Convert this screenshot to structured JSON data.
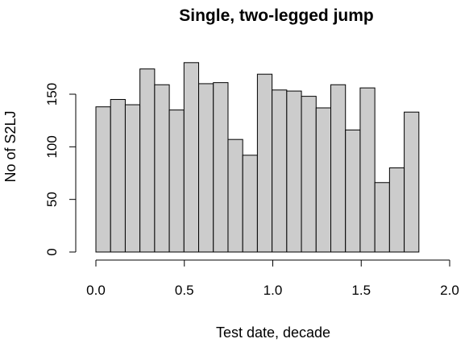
{
  "chart_data": {
    "type": "bar",
    "title": "Single, two-legged jump",
    "xlabel": "Test date, decade",
    "ylabel": "No of S2LJ",
    "bin_width": 0.083,
    "x_bins_start": [
      0.0,
      0.083,
      0.166,
      0.249,
      0.332,
      0.415,
      0.498,
      0.581,
      0.664,
      0.747,
      0.83,
      0.913,
      0.996,
      1.079,
      1.162,
      1.245,
      1.328,
      1.411,
      1.494,
      1.577,
      1.66,
      1.743
    ],
    "values": [
      138,
      145,
      140,
      174,
      159,
      135,
      180,
      160,
      161,
      107,
      92,
      169,
      154,
      153,
      148,
      137,
      159,
      116,
      156,
      66,
      80,
      133
    ],
    "xlim": [
      0,
      2
    ],
    "ylim": [
      0,
      180
    ],
    "x_ticks": [
      "0.0",
      "0.5",
      "1.0",
      "1.5",
      "2.0"
    ],
    "y_ticks": [
      "0",
      "50",
      "100",
      "150"
    ],
    "bar_color": "#cccccc",
    "grid": false
  }
}
